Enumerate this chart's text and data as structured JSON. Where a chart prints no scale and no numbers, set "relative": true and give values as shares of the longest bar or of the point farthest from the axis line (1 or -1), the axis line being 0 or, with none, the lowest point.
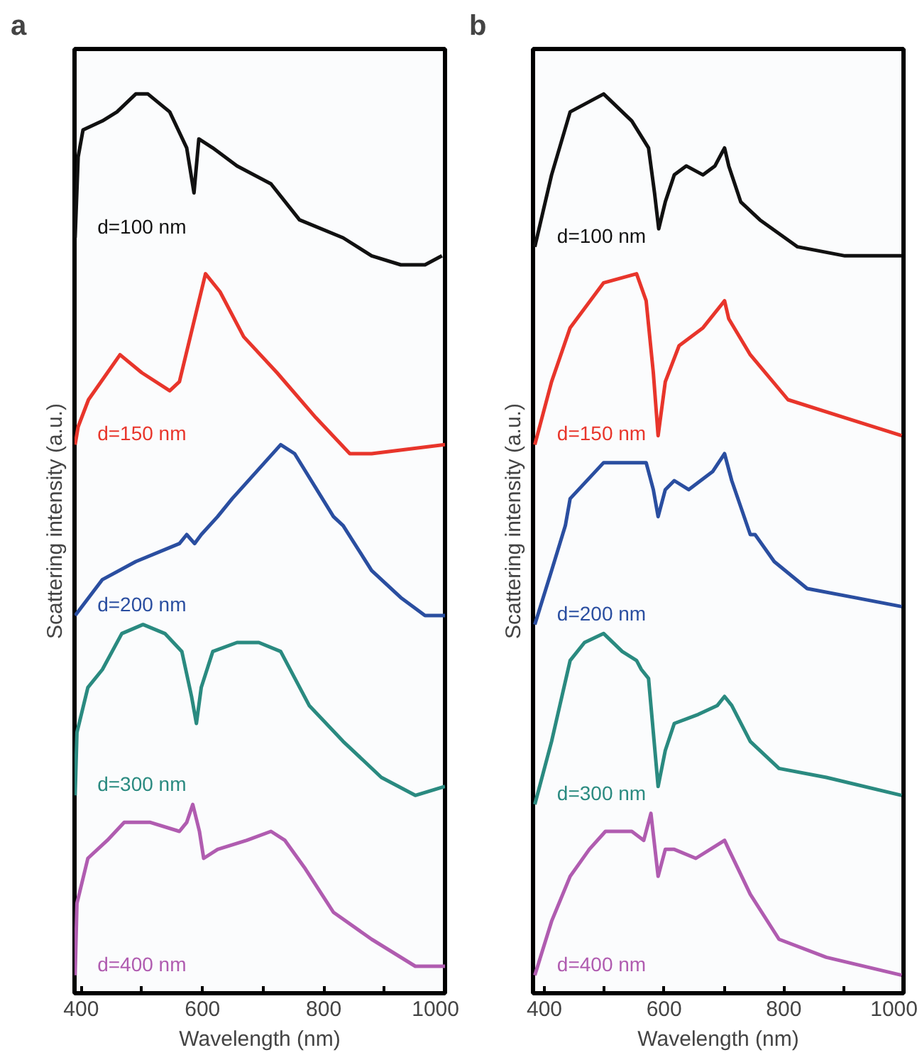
{
  "chart_data": [
    {
      "type": "line",
      "title": "a",
      "xlabel": "Wavelength (nm)",
      "ylabel": "Scattering intensity (a.u.)",
      "relative": true,
      "xlim": [
        389,
        1000
      ],
      "xticks": [
        400,
        {
          "value": 500,
          "label": null
        },
        600,
        {
          "value": 700,
          "label": null
        },
        800,
        {
          "value": 900,
          "label": null
        },
        1000
      ],
      "grid": false,
      "legend": false,
      "series": [
        {
          "name": "d=100 nm",
          "color": "#111111",
          "x": [
            390,
            395,
            403,
            435,
            459,
            490,
            510,
            546,
            574,
            586,
            594,
            617,
            657,
            713,
            760,
            832,
            879,
            927,
            967,
            995
          ],
          "values": [
            0.84,
            0.93,
            0.96,
            0.97,
            0.98,
            1.0,
            1.0,
            0.98,
            0.94,
            0.89,
            0.95,
            0.94,
            0.92,
            0.9,
            0.86,
            0.84,
            0.82,
            0.81,
            0.81,
            0.82
          ]
        },
        {
          "name": "d=150 nm",
          "color": "#e8352b",
          "x": [
            390,
            395,
            412,
            464,
            500,
            546,
            562,
            605,
            629,
            668,
            723,
            787,
            843,
            879,
            1000
          ],
          "values": [
            0.61,
            0.63,
            0.66,
            0.71,
            0.69,
            0.67,
            0.68,
            0.8,
            0.78,
            0.73,
            0.69,
            0.64,
            0.6,
            0.6,
            0.61
          ]
        },
        {
          "name": "d=200 nm",
          "color": "#2a4ea0",
          "x": [
            390,
            435,
            490,
            562,
            574,
            587,
            598,
            625,
            649,
            689,
            729,
            752,
            816,
            832,
            879,
            927,
            967,
            1000
          ],
          "values": [
            0.42,
            0.46,
            0.48,
            0.5,
            0.51,
            0.5,
            0.51,
            0.53,
            0.55,
            0.58,
            0.61,
            0.6,
            0.53,
            0.52,
            0.47,
            0.44,
            0.42,
            0.42
          ]
        },
        {
          "name": "d=300 nm",
          "color": "#2a8a80",
          "x": [
            390,
            393,
            411,
            435,
            467,
            502,
            538,
            566,
            582,
            590,
            598,
            617,
            657,
            693,
            729,
            776,
            832,
            895,
            951,
            1000
          ],
          "values": [
            0.22,
            0.29,
            0.34,
            0.36,
            0.4,
            0.41,
            0.4,
            0.38,
            0.33,
            0.3,
            0.34,
            0.38,
            0.39,
            0.39,
            0.38,
            0.32,
            0.28,
            0.24,
            0.22,
            0.23
          ]
        },
        {
          "name": "d=400 nm",
          "color": "#b05cb0",
          "x": [
            390,
            393,
            411,
            443,
            471,
            514,
            562,
            574,
            584,
            595,
            602,
            625,
            673,
            713,
            736,
            768,
            816,
            879,
            951,
            1000
          ],
          "values": [
            0.02,
            0.1,
            0.15,
            0.17,
            0.19,
            0.19,
            0.18,
            0.19,
            0.21,
            0.18,
            0.15,
            0.16,
            0.17,
            0.18,
            0.17,
            0.14,
            0.09,
            0.06,
            0.03,
            0.03
          ]
        }
      ]
    },
    {
      "type": "line",
      "title": "b",
      "xlabel": "Wavelength (nm)",
      "ylabel": "Scattering intensity (a.u.)",
      "relative": true,
      "xlim": [
        381,
        1000
      ],
      "xticks": [
        400,
        {
          "value": 500,
          "label": null
        },
        600,
        {
          "value": 700,
          "label": null
        },
        800,
        {
          "value": 900,
          "label": null
        },
        1000
      ],
      "grid": false,
      "legend": false,
      "series": [
        {
          "name": "d=100 nm",
          "color": "#111111",
          "x": [
            384,
            412,
            443,
            499,
            546,
            574,
            584,
            591,
            602,
            617,
            637,
            665,
            685,
            701,
            708,
            728,
            760,
            823,
            902,
            997
          ],
          "values": [
            0.83,
            0.91,
            0.98,
            1.0,
            0.97,
            0.94,
            0.89,
            0.85,
            0.88,
            0.91,
            0.92,
            0.91,
            0.92,
            0.94,
            0.92,
            0.88,
            0.86,
            0.83,
            0.82,
            0.82
          ]
        },
        {
          "name": "d=150 nm",
          "color": "#e8352b",
          "x": [
            384,
            412,
            443,
            499,
            554,
            570,
            582,
            590,
            602,
            625,
            665,
            701,
            708,
            744,
            807,
            902,
            997
          ],
          "values": [
            0.61,
            0.68,
            0.74,
            0.79,
            0.8,
            0.77,
            0.69,
            0.62,
            0.68,
            0.72,
            0.74,
            0.77,
            0.75,
            0.71,
            0.66,
            0.64,
            0.62
          ]
        },
        {
          "name": "d=200 nm",
          "color": "#2a4ea0",
          "x": [
            384,
            412,
            435,
            443,
            499,
            523,
            570,
            582,
            590,
            602,
            617,
            641,
            681,
            701,
            713,
            744,
            752,
            784,
            839,
            918,
            997
          ],
          "values": [
            0.41,
            0.47,
            0.52,
            0.55,
            0.59,
            0.59,
            0.59,
            0.56,
            0.53,
            0.56,
            0.57,
            0.56,
            0.58,
            0.6,
            0.57,
            0.51,
            0.51,
            0.48,
            0.45,
            0.44,
            0.43
          ]
        },
        {
          "name": "d=300 nm",
          "color": "#2a8a80",
          "x": [
            384,
            412,
            443,
            467,
            499,
            530,
            554,
            562,
            574,
            582,
            590,
            602,
            617,
            657,
            689,
            701,
            713,
            744,
            792,
            871,
            997
          ],
          "values": [
            0.21,
            0.28,
            0.37,
            0.39,
            0.4,
            0.38,
            0.37,
            0.36,
            0.35,
            0.29,
            0.23,
            0.27,
            0.3,
            0.31,
            0.32,
            0.33,
            0.32,
            0.28,
            0.25,
            0.24,
            0.22
          ]
        },
        {
          "name": "d=400 nm",
          "color": "#b05cb0",
          "x": [
            384,
            412,
            443,
            475,
            502,
            546,
            566,
            578,
            590,
            602,
            617,
            653,
            701,
            708,
            744,
            792,
            871,
            997
          ],
          "values": [
            0.02,
            0.08,
            0.13,
            0.16,
            0.18,
            0.18,
            0.17,
            0.2,
            0.13,
            0.16,
            0.16,
            0.15,
            0.17,
            0.16,
            0.11,
            0.06,
            0.04,
            0.02
          ]
        }
      ]
    }
  ]
}
